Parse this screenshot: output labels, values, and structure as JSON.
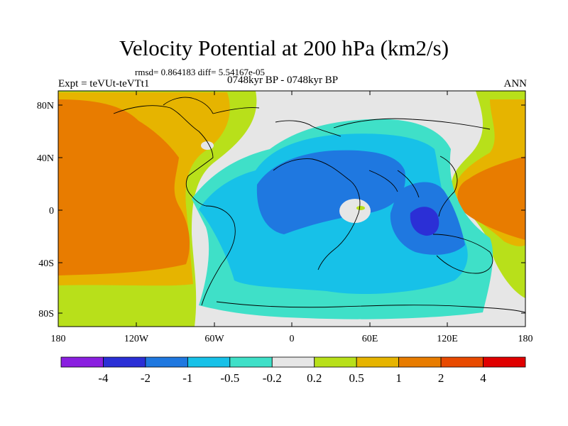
{
  "header": {
    "title": "Velocity Potential at 200 hPa (km2/s)",
    "stats": "rmsd= 0.864183 diff= 5.54167e-05",
    "experiment": "Expt = teVUt-teVTt1",
    "period": "0748kyr BP - 0748kyr BP",
    "season": "ANN"
  },
  "axes": {
    "lat_ticks": [
      "80N",
      "40N",
      "0",
      "40S",
      "80S"
    ],
    "lon_ticks": [
      "180",
      "120W",
      "60W",
      "0",
      "60E",
      "120E",
      "180"
    ]
  },
  "colorbar": {
    "colors": [
      "#8a1fe0",
      "#2b2fd6",
      "#1f78e0",
      "#17c1e8",
      "#3fe0c8",
      "#e6e6e6",
      "#b8e01a",
      "#e6b400",
      "#e87c00",
      "#e84a00",
      "#e00000"
    ],
    "labels": [
      "-4",
      "-2",
      "-1",
      "-0.5",
      "-0.2",
      "0.2",
      "0.5",
      "1",
      "2",
      "4"
    ]
  },
  "map_colors": {
    "neutral": "#e6e6e6",
    "land_outline": "#000000"
  }
}
